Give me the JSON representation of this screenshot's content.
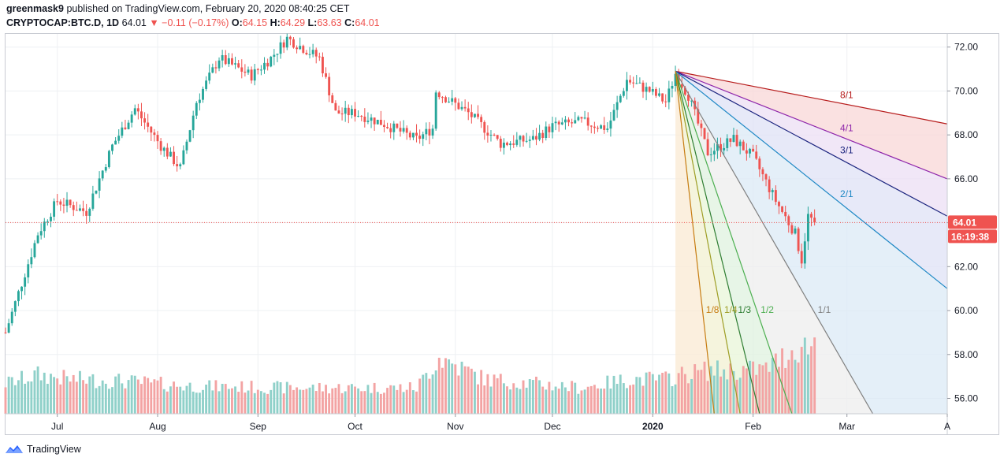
{
  "header": {
    "author": "greenmask9",
    "published_text": "published on TradingView.com, February 20, 2020 08:40:25 CET",
    "symbol": "CRYPTOCAP:BTC.D, 1D",
    "last": "64.01",
    "change": "▼ −0.11 (−0.17%)",
    "o_label": "O:",
    "o_value": "64.15",
    "h_label": "H:",
    "h_value": "64.29",
    "l_label": "L:",
    "l_value": "63.63",
    "c_label": "C:",
    "c_value": "64.01"
  },
  "footer": {
    "brand": "TradingView"
  },
  "colors": {
    "up": "#26a69a",
    "down": "#ef5350",
    "vol_up": "#8fd0c9",
    "vol_down": "#f3a3a3",
    "price_line": "#ef5350"
  },
  "chart_data": {
    "type": "candlestick",
    "y_ticks": [
      "72.00",
      "70.00",
      "68.00",
      "66.00",
      "64.00",
      "62.00",
      "60.00",
      "58.00",
      "56.00"
    ],
    "ylim": [
      55.3,
      72.6
    ],
    "x_labels": [
      "Jul",
      "Aug",
      "Sep",
      "Oct",
      "Nov",
      "Dec",
      "2020",
      "Feb",
      "Mar",
      "A"
    ],
    "x_label_dates": [
      "2019-07-01",
      "2019-08-01",
      "2019-09-01",
      "2019-10-01",
      "2019-11-01",
      "2019-12-01",
      "2020-01-01",
      "2020-02-01",
      "2020-03-01",
      "2020-04-01"
    ],
    "price_label": "64.01",
    "countdown_label": "16:19:38",
    "price_keypoints": [
      [
        "2019-06-15",
        59.0
      ],
      [
        "2019-06-25",
        63.5
      ],
      [
        "2019-07-01",
        65.0
      ],
      [
        "2019-07-10",
        64.5
      ],
      [
        "2019-07-18",
        67.5
      ],
      [
        "2019-07-25",
        69.2
      ],
      [
        "2019-08-02",
        67.5
      ],
      [
        "2019-08-08",
        66.5
      ],
      [
        "2019-08-13",
        69.5
      ],
      [
        "2019-08-20",
        71.5
      ],
      [
        "2019-08-30",
        70.7
      ],
      [
        "2019-09-05",
        71.5
      ],
      [
        "2019-09-10",
        72.4
      ],
      [
        "2019-09-20",
        71.5
      ],
      [
        "2019-09-25",
        69.0
      ],
      [
        "2019-10-01",
        69.0
      ],
      [
        "2019-10-10",
        68.5
      ],
      [
        "2019-10-20",
        67.8
      ],
      [
        "2019-10-25",
        68.3
      ],
      [
        "2019-10-26",
        70.0
      ],
      [
        "2019-11-05",
        69.0
      ],
      [
        "2019-11-15",
        67.6
      ],
      [
        "2019-11-25",
        67.8
      ],
      [
        "2019-12-01",
        68.4
      ],
      [
        "2019-12-10",
        68.6
      ],
      [
        "2019-12-18",
        68.3
      ],
      [
        "2019-12-24",
        70.5
      ],
      [
        "2019-12-31",
        70.0
      ],
      [
        "2020-01-05",
        69.5
      ],
      [
        "2020-01-08",
        70.8
      ],
      [
        "2020-01-12",
        69.8
      ],
      [
        "2020-01-18",
        67.2
      ],
      [
        "2020-01-26",
        67.8
      ],
      [
        "2020-02-01",
        67.0
      ],
      [
        "2020-02-08",
        65.0
      ],
      [
        "2020-02-14",
        63.5
      ],
      [
        "2020-02-16",
        62.3
      ],
      [
        "2020-02-18",
        64.3
      ],
      [
        "2020-02-20",
        64.01
      ]
    ],
    "volume_keypoints": [
      [
        "2019-06-15",
        0.35
      ],
      [
        "2019-06-25",
        0.45
      ],
      [
        "2019-07-05",
        0.4
      ],
      [
        "2019-07-20",
        0.38
      ],
      [
        "2019-08-10",
        0.32
      ],
      [
        "2019-09-10",
        0.3
      ],
      [
        "2019-10-20",
        0.3
      ],
      [
        "2019-10-27",
        0.65
      ],
      [
        "2019-11-10",
        0.4
      ],
      [
        "2019-12-10",
        0.3
      ],
      [
        "2019-12-25",
        0.4
      ],
      [
        "2020-01-05",
        0.4
      ],
      [
        "2020-01-10",
        0.45
      ],
      [
        "2020-01-18",
        0.5
      ],
      [
        "2020-01-26",
        0.5
      ],
      [
        "2020-02-05",
        0.52
      ],
      [
        "2020-02-14",
        0.75
      ],
      [
        "2020-02-20",
        0.8
      ]
    ],
    "gann_fan": {
      "origin_date": "2020-01-08",
      "origin_price": 70.9,
      "lines": [
        {
          "label": "8/1",
          "color": "#b71c1c",
          "fill": "#f8d7d7",
          "end_date": "2020-04-01",
          "end_price": 68.5
        },
        {
          "label": "4/1",
          "color": "#8e24aa",
          "fill": "#ecdff4",
          "end_date": "2020-04-01",
          "end_price": 66.0
        },
        {
          "label": "3/1",
          "color": "#1a237e",
          "fill": "#dfe2f5",
          "end_date": "2020-04-01",
          "end_price": 64.3
        },
        {
          "label": "2/1",
          "color": "#1e88c5",
          "fill": "#dbeaf6",
          "end_date": "2020-04-01",
          "end_price": 61.0
        },
        {
          "label": "1/1",
          "color": "#808080",
          "fill": "#eeeeee",
          "end_date": "2020-03-09",
          "end_price": 55.3
        },
        {
          "label": "1/2",
          "color": "#4caf50",
          "fill": "#dff1df",
          "end_date": "2020-02-13",
          "end_price": 55.3
        },
        {
          "label": "1/3",
          "color": "#2e7d32",
          "fill": "#e8f5d8",
          "end_date": "2020-02-03",
          "end_price": 55.3
        },
        {
          "label": "1/4",
          "color": "#9e9d24",
          "fill": "#f2f0d2",
          "end_date": "2020-01-28",
          "end_price": 55.3
        },
        {
          "label": "1/8",
          "color": "#c77c11",
          "fill": "#f9ead3",
          "end_date": "2020-01-20",
          "end_price": 55.3
        }
      ]
    }
  }
}
